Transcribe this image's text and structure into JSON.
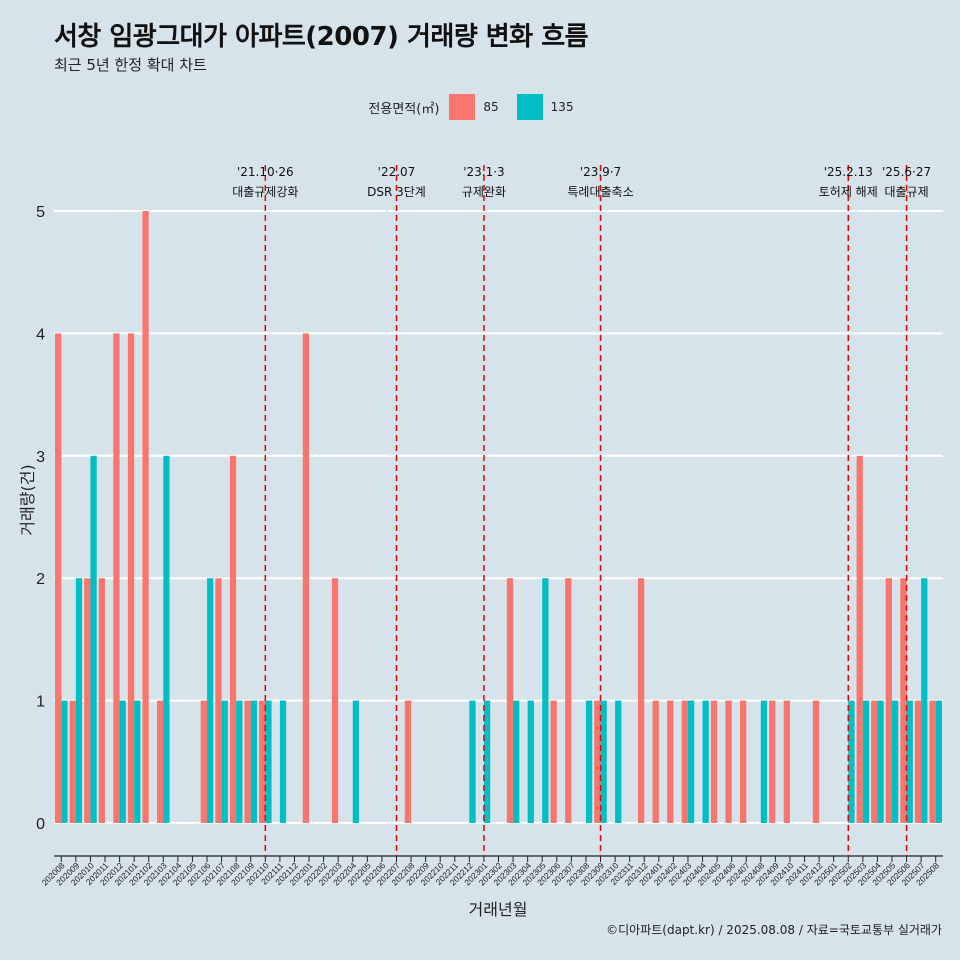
{
  "title": "서창 임광그대가 아파트(2007) 거래량 변화 흐름",
  "subtitle": "최근 5년 한정 확대 차트",
  "caption": "©디아파트(dapt.kr) / 2025.08.08 / 자료=국토교통부 실거래가",
  "legend_title": "전용면적(㎡)",
  "colors": {
    "s85": "#f8766d",
    "s135": "#00bfc4",
    "bg": "#d6e3ea",
    "grid": "#ffffff",
    "vline": "#ee0000"
  },
  "chart_data": {
    "type": "bar",
    "xlabel": "거래년월",
    "ylabel": "거래량(건)",
    "ylim": [
      0,
      5
    ],
    "yticks": [
      0,
      1,
      2,
      3,
      4,
      5
    ],
    "categories": [
      "202008",
      "202009",
      "202010",
      "202011",
      "202012",
      "202101",
      "202102",
      "202103",
      "202104",
      "202105",
      "202106",
      "202107",
      "202108",
      "202109",
      "202110",
      "202111",
      "202112",
      "202201",
      "202202",
      "202203",
      "202204",
      "202205",
      "202206",
      "202207",
      "202208",
      "202209",
      "202210",
      "202211",
      "202212",
      "202301",
      "202302",
      "202303",
      "202304",
      "202305",
      "202306",
      "202307",
      "202308",
      "202309",
      "202310",
      "202311",
      "202312",
      "202401",
      "202402",
      "202403",
      "202404",
      "202405",
      "202406",
      "202407",
      "202408",
      "202409",
      "202410",
      "202411",
      "202412",
      "202501",
      "202502",
      "202503",
      "202504",
      "202505",
      "202506",
      "202507",
      "202508"
    ],
    "series": [
      {
        "name": "85",
        "values": [
          4,
          1,
          2,
          2,
          4,
          4,
          5,
          1,
          0,
          0,
          1,
          2,
          3,
          1,
          1,
          0,
          0,
          4,
          0,
          2,
          0,
          0,
          0,
          0,
          1,
          0,
          0,
          0,
          0,
          0,
          0,
          2,
          0,
          0,
          1,
          2,
          0,
          1,
          0,
          0,
          2,
          1,
          1,
          1,
          0,
          1,
          1,
          1,
          0,
          1,
          1,
          0,
          1,
          0,
          0,
          3,
          1,
          2,
          2,
          1,
          1
        ]
      },
      {
        "name": "135",
        "values": [
          1,
          2,
          3,
          0,
          1,
          1,
          0,
          3,
          0,
          0,
          2,
          1,
          1,
          1,
          1,
          1,
          0,
          0,
          0,
          0,
          1,
          0,
          0,
          0,
          0,
          0,
          0,
          0,
          1,
          1,
          0,
          1,
          1,
          2,
          0,
          0,
          1,
          1,
          1,
          0,
          0,
          0,
          0,
          1,
          1,
          0,
          0,
          0,
          1,
          0,
          0,
          0,
          0,
          0,
          1,
          1,
          1,
          1,
          1,
          2,
          1
        ]
      }
    ],
    "annotations": [
      {
        "month": "202110",
        "date": "'21.10·26",
        "label": "대출규제강화"
      },
      {
        "month": "202207",
        "date": "'22.07",
        "label": "DSR 3단계"
      },
      {
        "month": "202301",
        "date": "'23.1·3",
        "label": "규제완화"
      },
      {
        "month": "202309",
        "date": "'23.9·7",
        "label": "특례대출축소"
      },
      {
        "month": "202502",
        "date": "'25.2.13",
        "label": "토허제 해제"
      },
      {
        "month": "202506",
        "date": "'25.6·27",
        "label": "대출규제"
      }
    ]
  }
}
